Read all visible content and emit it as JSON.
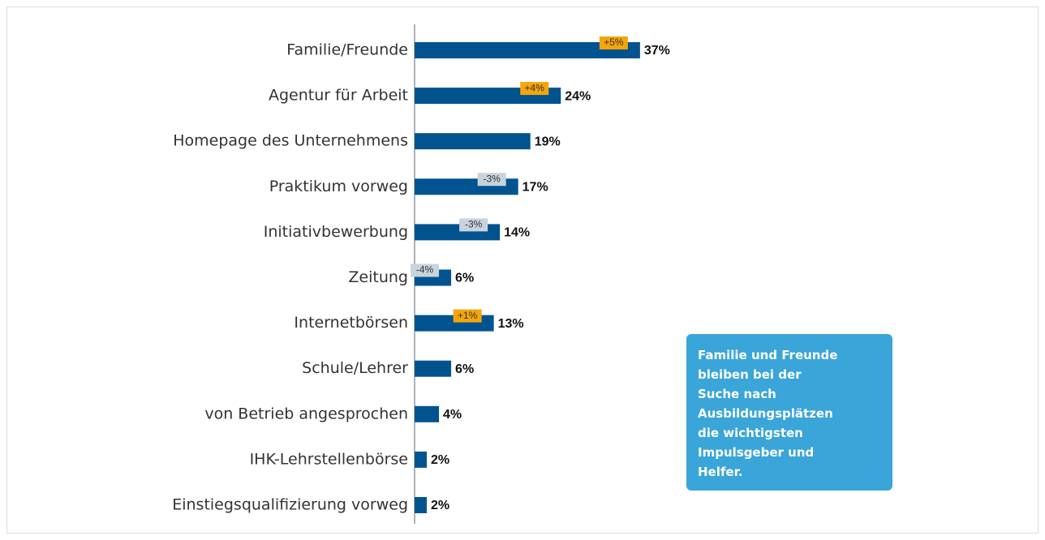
{
  "chart_data": {
    "type": "bar",
    "orientation": "horizontal",
    "categories": [
      "Familie/Freunde",
      "Agentur für Arbeit",
      "Homepage des Unternehmens",
      "Praktikum vorweg",
      "Initiativbewerbung",
      "Zeitung",
      "Internetbörsen",
      "Schule/Lehrer",
      "von Betrieb angesprochen",
      "IHK-Lehrstellenbörse",
      "Einstiegsqualifizierung vorweg"
    ],
    "values": [
      37,
      24,
      19,
      17,
      14,
      6,
      13,
      6,
      4,
      2,
      2
    ],
    "value_labels": [
      "37%",
      "24%",
      "19%",
      "17%",
      "14%",
      "6%",
      "13%",
      "6%",
      "4%",
      "2%",
      "2%"
    ],
    "changes": [
      5,
      4,
      null,
      -3,
      -3,
      -4,
      1,
      null,
      null,
      null,
      null
    ],
    "change_labels": [
      "+5%",
      "+4%",
      null,
      "-3%",
      "-3%",
      "-4%",
      "+1%",
      null,
      null,
      null,
      null
    ],
    "color": "#00538f",
    "positive_color": "#f5a50a",
    "negative_color": "#c9d3de",
    "xlim": [
      0,
      100
    ],
    "note": "Familie und Freunde bleiben bei der Suche nach Ausbildungsplätzen die wichtigsten Impulsgeber und Helfer."
  }
}
